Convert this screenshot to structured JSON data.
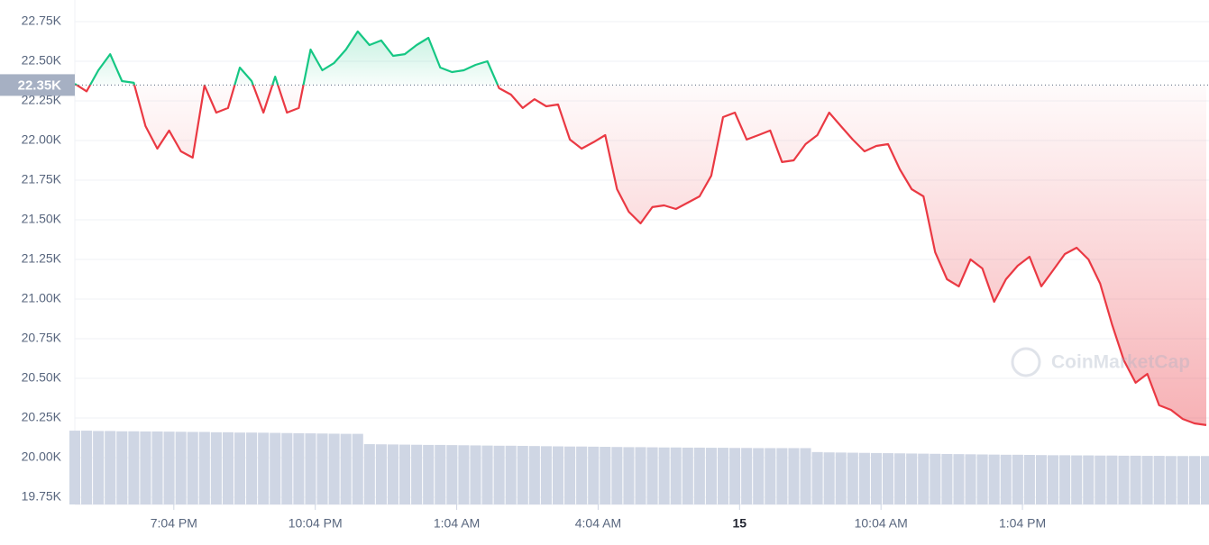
{
  "chart_data": {
    "type": "line",
    "watermark": "CoinMarketCap",
    "baseline": {
      "value": 22350,
      "label": "22.35K"
    },
    "xlim": [
      0,
      96
    ],
    "xticks": [
      {
        "value": 8.4,
        "label": "7:04 PM"
      },
      {
        "value": 20.4,
        "label": "10:04 PM"
      },
      {
        "value": 32.4,
        "label": "1:04 AM"
      },
      {
        "value": 44.4,
        "label": "4:04 AM"
      },
      {
        "value": 56.4,
        "label": "15"
      },
      {
        "value": 68.4,
        "label": "10:04 AM"
      },
      {
        "value": 80.4,
        "label": "1:04 PM"
      }
    ],
    "ylim": [
      19700,
      22850
    ],
    "yticks": [
      {
        "value": 22750,
        "label": "22.75K"
      },
      {
        "value": 22500,
        "label": "22.50K"
      },
      {
        "value": 22250,
        "label": "22.25K"
      },
      {
        "value": 22000,
        "label": "22.00K"
      },
      {
        "value": 21750,
        "label": "21.75K"
      },
      {
        "value": 21500,
        "label": "21.50K"
      },
      {
        "value": 21250,
        "label": "21.25K"
      },
      {
        "value": 21000,
        "label": "21.00K"
      },
      {
        "value": 20750,
        "label": "20.75K"
      },
      {
        "value": 20500,
        "label": "20.50K"
      },
      {
        "value": 20250,
        "label": "20.25K"
      },
      {
        "value": 20000,
        "label": "20.00K"
      },
      {
        "value": 19750,
        "label": "19.75K"
      }
    ],
    "grid": true,
    "up_color": "#16c784",
    "down_color": "#ea3943",
    "volume_color": "#cfd6e4",
    "series": [
      {
        "name": "price",
        "values": [
          22358,
          22310,
          22443,
          22545,
          22375,
          22364,
          22091,
          21949,
          22063,
          21932,
          21892,
          22347,
          22176,
          22205,
          22460,
          22375,
          22176,
          22403,
          22176,
          22205,
          22574,
          22443,
          22489,
          22574,
          22688,
          22602,
          22631,
          22534,
          22545,
          22602,
          22648,
          22460,
          22432,
          22443,
          22477,
          22500,
          22330,
          22290,
          22205,
          22261,
          22216,
          22227,
          22006,
          21949,
          21989,
          22034,
          21693,
          21551,
          21477,
          21580,
          21591,
          21568,
          21608,
          21648,
          21778,
          22148,
          22176,
          22006,
          22034,
          22063,
          21864,
          21875,
          21977,
          22034,
          22176,
          22091,
          22006,
          21932,
          21966,
          21977,
          21818,
          21693,
          21648,
          21295,
          21125,
          21080,
          21250,
          21193,
          20983,
          21125,
          21210,
          21267,
          21080,
          21182,
          21284,
          21324,
          21250,
          21097,
          20841,
          20614,
          20472,
          20528,
          20330,
          20301,
          20244,
          20216,
          20205
        ]
      },
      {
        "name": "volume",
        "values": [
          20170,
          20170,
          20168,
          20168,
          20166,
          20166,
          20165,
          20165,
          20164,
          20163,
          20162,
          20162,
          20160,
          20160,
          20158,
          20158,
          20157,
          20156,
          20155,
          20154,
          20153,
          20152,
          20151,
          20150,
          20150,
          20085,
          20084,
          20083,
          20082,
          20081,
          20080,
          20080,
          20079,
          20078,
          20077,
          20076,
          20075,
          20075,
          20074,
          20073,
          20072,
          20071,
          20070,
          20070,
          20069,
          20068,
          20067,
          20066,
          20066,
          20065,
          20064,
          20064,
          20063,
          20063,
          20062,
          20062,
          20061,
          20061,
          20060,
          20060,
          20060,
          20060,
          20060,
          20035,
          20033,
          20032,
          20031,
          20030,
          20029,
          20028,
          20027,
          20026,
          20025,
          20024,
          20023,
          20022,
          20021,
          20020,
          20019,
          20018,
          20018,
          20017,
          20016,
          20015,
          20015,
          20014,
          20014,
          20013,
          20013,
          20012,
          20012,
          20011,
          20011,
          20010,
          20010,
          20010,
          20010
        ]
      }
    ]
  }
}
